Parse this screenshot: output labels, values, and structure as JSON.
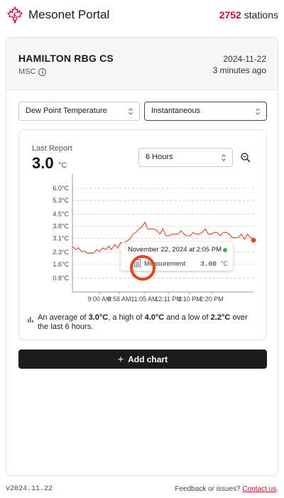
{
  "header": {
    "app_title": "Mesonet Portal",
    "station_count": "2752",
    "station_suffix": " stations",
    "logo_icon": "maple-leaf-lightning-icon"
  },
  "station": {
    "name": "HAMILTON RBG CS",
    "network": "MSC",
    "date": "2024-11-22",
    "ago": "3 minutes ago"
  },
  "controls": {
    "variable": "Dew Point Temperature",
    "mode": "Instantaneous"
  },
  "chart_card": {
    "last_report_label": "Last Report",
    "last_value": "3.0",
    "unit": "°C",
    "range": "6 Hours",
    "zoom_icon": "zoom-search-icon"
  },
  "tooltip": {
    "date": "November 22, 2024 at 2:05 PM",
    "label": "Measurement",
    "value": "3.00",
    "unit": "°C"
  },
  "summary": {
    "prefix": "An average of ",
    "avg": "3.0°C",
    "mid1": ", a high of ",
    "high": "4.0°C",
    "mid2": " and a low of ",
    "low": "2.2°C",
    "suffix": " over the last 6 hours."
  },
  "add_chart_label": "Add chart",
  "footer": {
    "version": "v2024.11.22",
    "feedback": "Feedback or issues? ",
    "contact": "Contact us",
    "period": "."
  },
  "colors": {
    "accent": "#c8102e",
    "series": "#e0452b",
    "status_dot": "#3db34a"
  },
  "chart_data": {
    "type": "line",
    "ylabel": "",
    "xlabel": "",
    "ylim": [
      0.0,
      6.5
    ],
    "y_ticks": [
      "6.0°C",
      "5.3°C",
      "4.5°C",
      "3.8°C",
      "3.1°C",
      "2.3°C",
      "1.6°C",
      "0.8°C"
    ],
    "y_tick_values": [
      6.0,
      5.3,
      4.5,
      3.8,
      3.1,
      2.3,
      1.6,
      0.8
    ],
    "x_ticks": [
      "9:00 AM",
      "9:58 AM",
      "11:05 AM",
      "12:11 PM",
      "1:10 PM",
      "2:20 PM"
    ],
    "grid": true,
    "series": [
      {
        "x": [
          0,
          5,
          10,
          15,
          20,
          25,
          30,
          35,
          40,
          45,
          50,
          55,
          60,
          65,
          70,
          75,
          80,
          85,
          90,
          95,
          100,
          105,
          110,
          115,
          120,
          125,
          130,
          135,
          140,
          145,
          150,
          155,
          160,
          165,
          170,
          175,
          180,
          185,
          190,
          195,
          200,
          205,
          210,
          215,
          220,
          225,
          230,
          235,
          240,
          245,
          250,
          255,
          260,
          265,
          270,
          275,
          280,
          285,
          290,
          295,
          300
        ],
        "y": [
          2.6,
          2.5,
          2.5,
          2.4,
          2.3,
          2.3,
          2.2,
          2.3,
          2.4,
          2.4,
          2.5,
          2.5,
          2.6,
          2.5,
          2.7,
          2.6,
          2.8,
          2.9,
          2.9,
          3.1,
          3.3,
          3.5,
          3.6,
          3.8,
          4.0,
          3.7,
          3.6,
          3.7,
          3.5,
          3.4,
          3.6,
          3.3,
          3.2,
          3.4,
          3.3,
          3.4,
          3.5,
          3.4,
          3.2,
          3.3,
          3.4,
          3.4,
          3.3,
          3.5,
          3.6,
          3.4,
          3.3,
          3.5,
          3.4,
          3.3,
          3.4,
          3.5,
          3.3,
          3.2,
          3.1,
          3.2,
          3.3,
          3.1,
          3.3,
          3.2,
          3.0
        ]
      }
    ],
    "x_units": "minutes from 8:33 AM"
  }
}
